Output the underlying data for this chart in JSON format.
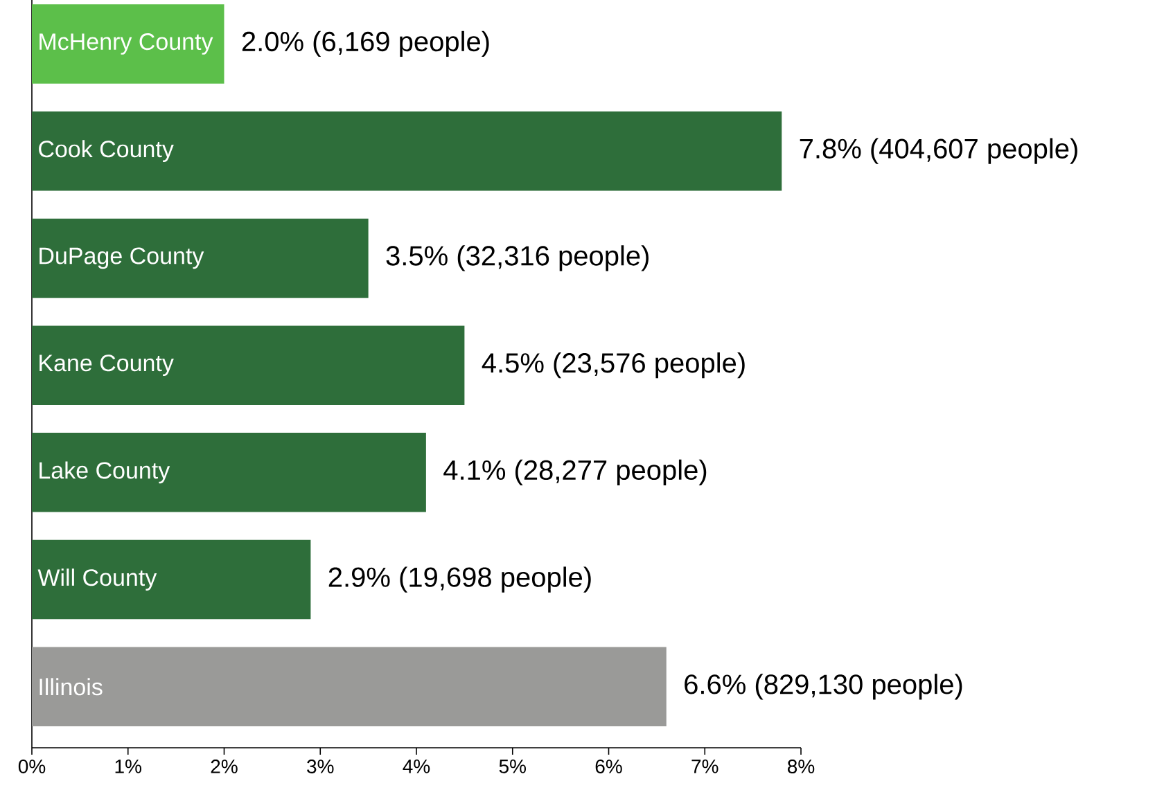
{
  "chart_data": {
    "type": "bar",
    "orientation": "horizontal",
    "categories": [
      "McHenry County",
      "Cook County",
      "DuPage County",
      "Kane County",
      "Lake County",
      "Will County",
      "Illinois"
    ],
    "values": [
      2.0,
      7.8,
      3.5,
      4.5,
      4.1,
      2.9,
      6.6
    ],
    "colors": [
      "#5cbf4a",
      "#2e6e3a",
      "#2e6e3a",
      "#2e6e3a",
      "#2e6e3a",
      "#2e6e3a",
      "#9a9a98"
    ],
    "value_labels": [
      "2.0% (6,169 people)",
      "7.8% (404,607 people)",
      "3.5% (32,316 people)",
      "4.5% (23,576 people)",
      "4.1% (28,277 people)",
      "2.9% (19,698 people)",
      "6.6% (829,130 people)"
    ],
    "xlim": [
      0,
      8
    ],
    "xticks": [
      {
        "value": 0,
        "label": "0%"
      },
      {
        "value": 1,
        "label": "1%"
      },
      {
        "value": 2,
        "label": "2%"
      },
      {
        "value": 3,
        "label": "3%"
      },
      {
        "value": 4,
        "label": "4%"
      },
      {
        "value": 5,
        "label": "5%"
      },
      {
        "value": 6,
        "label": "6%"
      },
      {
        "value": 7,
        "label": "7%"
      },
      {
        "value": 8,
        "label": "8%"
      }
    ]
  }
}
